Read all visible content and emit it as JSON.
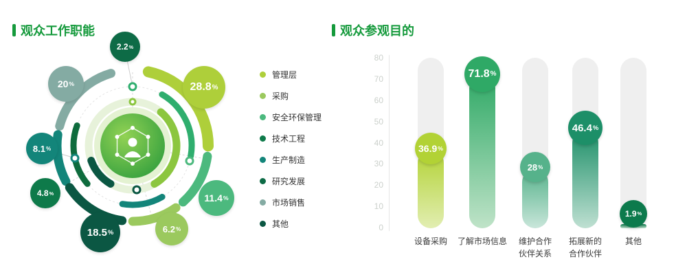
{
  "page": {
    "accent_color": "#159a3c",
    "background_color": "#ffffff"
  },
  "chart_data": [
    {
      "id": "job-functions",
      "type": "pie",
      "title": "观众工作职能",
      "unit": "%",
      "legend_position": "right",
      "series": [
        {
          "name": "管理层",
          "value": 28.8,
          "color": "#aecf3a"
        },
        {
          "name": "采购",
          "value": 6.2,
          "color": "#9bc95e"
        },
        {
          "name": "安全环保管理",
          "value": 11.4,
          "color": "#4cb97e"
        },
        {
          "name": "技术工程",
          "value": 4.8,
          "color": "#0e7a4a"
        },
        {
          "name": "生产制造",
          "value": 8.1,
          "color": "#13857a"
        },
        {
          "name": "研究发展",
          "value": 2.2,
          "color": "#0d6b46"
        },
        {
          "name": "市场销售",
          "value": 20,
          "color": "#84aba3"
        },
        {
          "name": "其他",
          "value": 18.5,
          "color": "#0b5743"
        }
      ],
      "bubbles": [
        {
          "label": "2.2",
          "unit": "%",
          "color": "#0d6b46"
        },
        {
          "label": "28.8",
          "unit": "%",
          "color": "#aecf3a"
        },
        {
          "label": "11.4",
          "unit": "%",
          "color": "#4cb97e"
        },
        {
          "label": "6.2",
          "unit": "%",
          "color": "#9bc95e"
        },
        {
          "label": "18.5",
          "unit": "%",
          "color": "#0b5743"
        },
        {
          "label": "4.8",
          "unit": "%",
          "color": "#0e7a4a"
        },
        {
          "label": "8.1",
          "unit": "%",
          "color": "#13857a"
        },
        {
          "label": "20",
          "unit": "%",
          "color": "#84aba3"
        }
      ]
    },
    {
      "id": "visit-purpose",
      "type": "bar",
      "title": "观众参观目的",
      "unit": "%",
      "ylim": [
        0,
        80
      ],
      "yticks": [
        0,
        10,
        20,
        30,
        40,
        50,
        60,
        70,
        80
      ],
      "grid": false,
      "categories": [
        [
          "设备采购"
        ],
        [
          "了解市场信息"
        ],
        [
          "维护合作",
          "伙伴关系"
        ],
        [
          "拓展新的",
          "合作伙伴"
        ],
        [
          "其他"
        ]
      ],
      "values": [
        36.9,
        71.8,
        28,
        46.4,
        1.9
      ],
      "value_labels": [
        "36.9",
        "71.8",
        "28",
        "46.4",
        "1.9"
      ],
      "colors": [
        "#b2d235",
        "#2fa966",
        "#56b28b",
        "#1d8f68",
        "#0c7a4c"
      ],
      "colors_light": [
        "#e2eeb2",
        "#bfe3c8",
        "#c9e6da",
        "#bfe0d2",
        "#bfe0cd"
      ]
    }
  ]
}
